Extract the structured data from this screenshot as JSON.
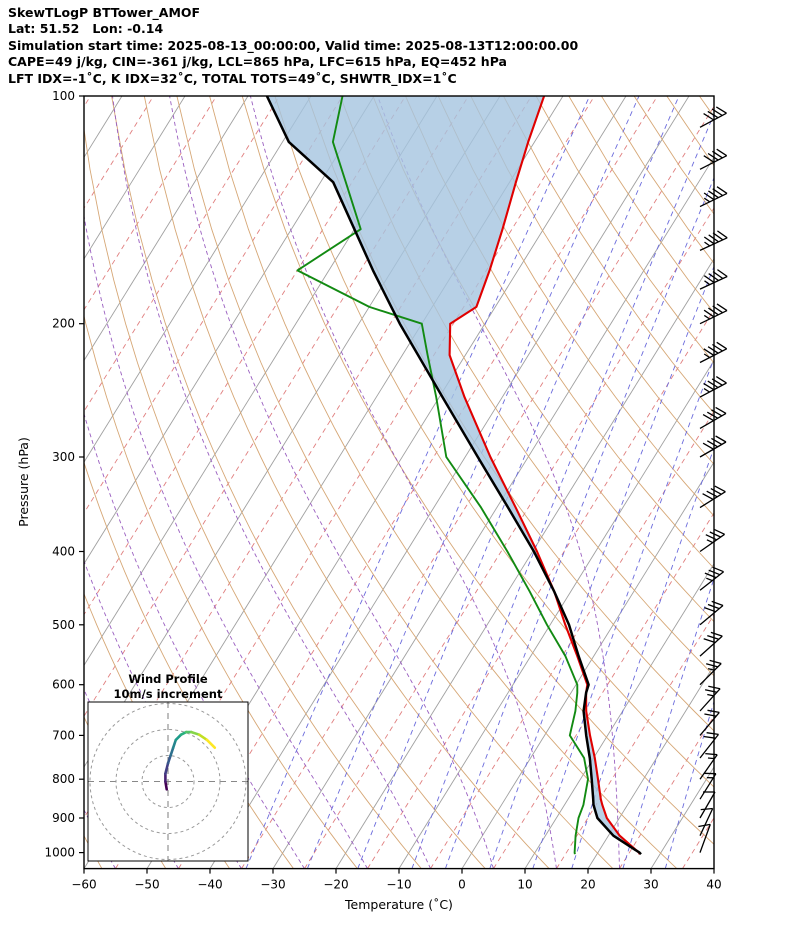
{
  "header": {
    "line1": "SkewTLogP BTTower_AMOF",
    "line2": "Lat: 51.52   Lon: -0.14",
    "line3": "Simulation start time: 2025-08-13_00:00:00, Valid time: 2025-08-13T12:00:00.00",
    "line4": "CAPE=49 j/kg, CIN=-361 j/kg, LCL=865 hPa, LFC=615 hPa, EQ=452 hPa",
    "line5": "LFT IDX=-1˚C, K IDX=32˚C, TOTAL TOTS=49˚C, SHWTR_IDX=1˚C"
  },
  "axes": {
    "x_label": "Temperature (˚C)",
    "y_label": "Pressure (hPa)",
    "x_tick_values": [
      -60,
      -50,
      -40,
      -30,
      -20,
      -10,
      0,
      10,
      20,
      30,
      40
    ],
    "x_tick_labels": [
      "−60",
      "−50",
      "−40",
      "−30",
      "−20",
      "−10",
      "0",
      "10",
      "20",
      "30",
      "40"
    ],
    "y_tick_values": [
      100,
      200,
      300,
      400,
      500,
      600,
      700,
      800,
      900,
      1000
    ],
    "y_tick_labels": [
      "100",
      "200",
      "300",
      "400",
      "500",
      "600",
      "700",
      "800",
      "900",
      "1000"
    ]
  },
  "hodograph_inset": {
    "title_line1": "Wind Profile",
    "title_line2": "10m/s increment"
  },
  "chart_data": {
    "type": "skewt-logp",
    "title": "SkewTLogP BTTower_AMOF",
    "pressure_axis_range": [
      100,
      1050
    ],
    "temperature_axis_range": [
      -60,
      40
    ],
    "pressure_log_scale": true,
    "indices": {
      "cape_jkg": 49,
      "cin_jkg": -361,
      "lcl_hpa": 865,
      "lfc_hpa": 615,
      "eq_hpa": 452,
      "lifted_index_c": -1,
      "k_index_c": 32,
      "total_totals_c": 49,
      "showalter_index_c": 1,
      "lat": 51.52,
      "lon": -0.14,
      "sim_start": "2025-08-13_00:00:00",
      "valid_time": "2025-08-13T12:00:00.00"
    },
    "profiles": {
      "pressure": [
        1005,
        1000,
        950,
        900,
        865,
        850,
        800,
        750,
        700,
        650,
        615,
        600,
        550,
        500,
        452,
        400,
        350,
        300,
        250,
        220,
        200,
        190,
        170,
        150,
        130,
        115,
        100
      ],
      "temperature": [
        26.8,
        26.5,
        21.8,
        18.0,
        16.0,
        15.2,
        12.8,
        10.2,
        7.2,
        4.2,
        2.4,
        1.8,
        -2.6,
        -7.6,
        -12.6,
        -19.3,
        -27.0,
        -36.0,
        -46.0,
        -52.5,
        -55.5,
        -53.0,
        -54.5,
        -56.5,
        -59.0,
        -61.0,
        -63.0
      ],
      "dewpoint": [
        16.5,
        16.3,
        14.8,
        13.5,
        13.0,
        12.6,
        11.2,
        8.5,
        4.0,
        2.5,
        1.0,
        0.2,
        -4.5,
        -10.5,
        -16.5,
        -24.0,
        -32.5,
        -43.0,
        -50.5,
        -56.0,
        -60.0,
        -70.0,
        -85.0,
        -79.0,
        -86.0,
        -92.0,
        -95.0
      ],
      "parcel": [
        27.0,
        26.6,
        20.8,
        16.5,
        14.6,
        14.0,
        11.8,
        9.4,
        6.6,
        3.8,
        2.4,
        2.0,
        -2.4,
        -7.0,
        -12.6,
        -19.8,
        -28.2,
        -38.0,
        -49.5,
        -57.5,
        -63.5,
        -66.5,
        -73.0,
        -80.0,
        -88.0,
        -99.0,
        -107.0
      ]
    },
    "winds": {
      "units": "kt",
      "pressure": [
        1000,
        950,
        900,
        850,
        800,
        750,
        700,
        650,
        600,
        550,
        500,
        450,
        400,
        350,
        300,
        275,
        250,
        225,
        200,
        180,
        160,
        140,
        125,
        110
      ],
      "speed": [
        8,
        10,
        12,
        15,
        17,
        19,
        21,
        23,
        27,
        29,
        31,
        33,
        35,
        38,
        40,
        42,
        44,
        45,
        46,
        47,
        46,
        44,
        42,
        40
      ],
      "direction": [
        200,
        205,
        210,
        212,
        215,
        218,
        220,
        222,
        225,
        228,
        230,
        232,
        235,
        238,
        240,
        240,
        242,
        243,
        244,
        245,
        245,
        244,
        243,
        242
      ]
    },
    "hodograph": {
      "ring_interval_ms": 10,
      "rings_ms": [
        10,
        20,
        30
      ],
      "u_ms": [
        -0.5,
        -1,
        -1,
        0,
        1,
        2,
        3,
        5,
        7,
        9,
        12,
        15,
        18
      ],
      "v_ms": [
        -3,
        0,
        3,
        7,
        10,
        13,
        16,
        18,
        19,
        19,
        18,
        16,
        13
      ],
      "colors": [
        "#440154",
        "#482173",
        "#433e85",
        "#38598c",
        "#2d708e",
        "#25858e",
        "#1e9b8a",
        "#2ab07f",
        "#52c569",
        "#86d549",
        "#c2df23",
        "#fde725"
      ]
    },
    "background": {
      "isotherms_c": {
        "min": -160,
        "max": 40,
        "step": 5
      },
      "dry_adiabats_theta_k": {
        "min": 213,
        "max": 473,
        "step": 10
      },
      "moist_adiabat_start_temps_c": [
        -55,
        -45,
        -35,
        -25,
        -15,
        -5,
        5,
        15,
        25
      ],
      "mixing_ratios_gkg": [
        0.2,
        0.5,
        1,
        2,
        3,
        5,
        8,
        12,
        20,
        30
      ]
    },
    "colors": {
      "temperature": "#e00000",
      "dewpoint": "#128a12",
      "parcel": "#000000",
      "shading": "#a5c4e0",
      "isotherm": "#a0a0a0",
      "isotherm_alt": "#e07f7f",
      "dry_adiabat": "#d6a776",
      "moist_adiabat": "#9a5fc0",
      "mixing_ratio": "#6b6bdc",
      "barb": "#000000",
      "hodo_ring": "#999999",
      "hodo_crosshair": "#888888"
    }
  }
}
